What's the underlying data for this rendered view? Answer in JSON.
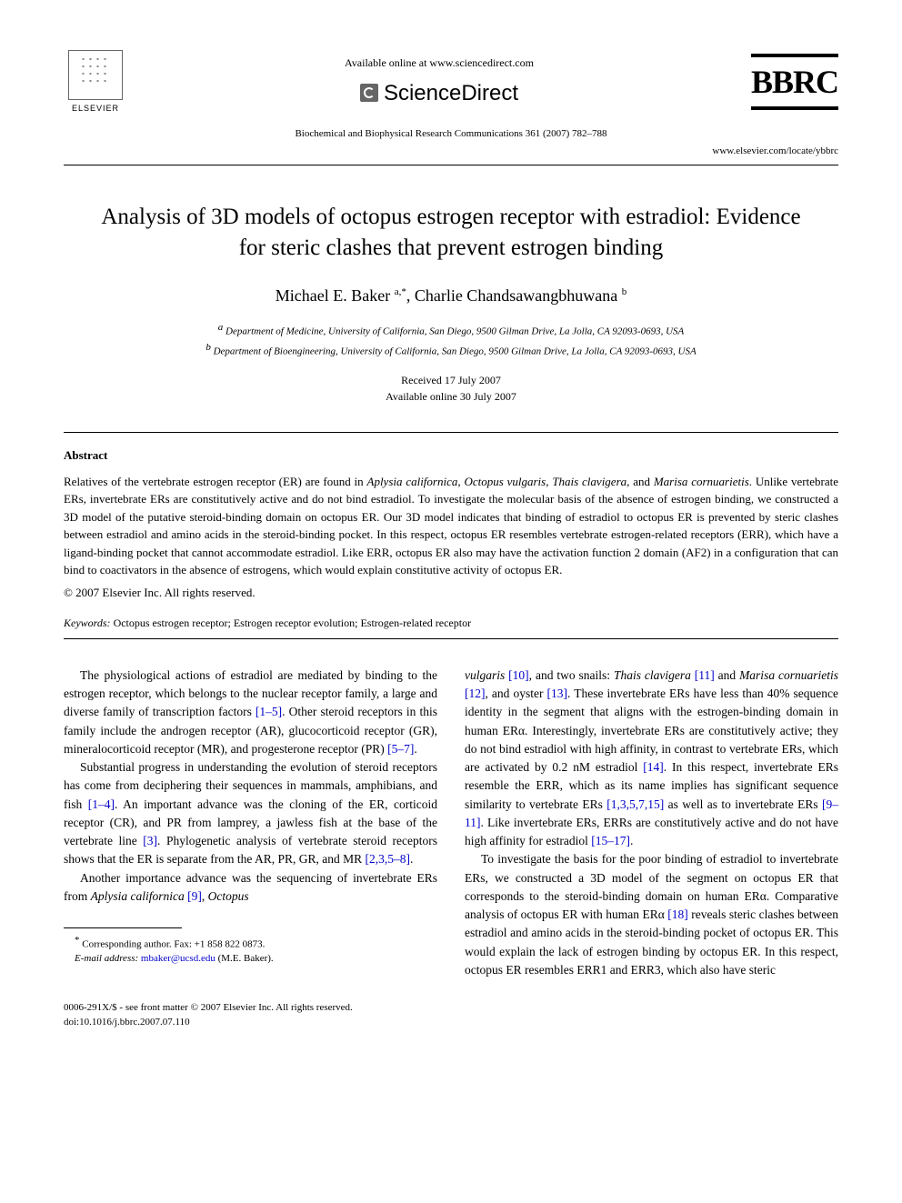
{
  "header": {
    "available_online": "Available online at www.sciencedirect.com",
    "sciencedirect": "ScienceDirect",
    "elsevier": "ELSEVIER",
    "bbrc": "BBRC",
    "journal_line": "Biochemical and Biophysical Research Communications 361 (2007) 782–788",
    "journal_url": "www.elsevier.com/locate/ybbrc"
  },
  "title": "Analysis of 3D models of octopus estrogen receptor with estradiol: Evidence for steric clashes that prevent estrogen binding",
  "authors": {
    "line": "Michael E. Baker ",
    "sup1": "a,*",
    "sep": ", Charlie Chandsawangbhuwana ",
    "sup2": "b"
  },
  "affiliations": {
    "a": "Department of Medicine, University of California, San Diego, 9500 Gilman Drive, La Jolla, CA 92093-0693, USA",
    "b": "Department of Bioengineering, University of California, San Diego, 9500 Gilman Drive, La Jolla, CA 92093-0693, USA"
  },
  "dates": {
    "received": "Received 17 July 2007",
    "online": "Available online 30 July 2007"
  },
  "abstract": {
    "heading": "Abstract",
    "text": "Relatives of the vertebrate estrogen receptor (ER) are found in Aplysia californica, Octopus vulgaris, Thais clavigera, and Marisa cornuarietis. Unlike vertebrate ERs, invertebrate ERs are constitutively active and do not bind estradiol. To investigate the molecular basis of the absence of estrogen binding, we constructed a 3D model of the putative steroid-binding domain on octopus ER. Our 3D model indicates that binding of estradiol to octopus ER is prevented by steric clashes between estradiol and amino acids in the steroid-binding pocket. In this respect, octopus ER resembles vertebrate estrogen-related receptors (ERR), which have a ligand-binding pocket that cannot accommodate estradiol. Like ERR, octopus ER also may have the activation function 2 domain (AF2) in a configuration that can bind to coactivators in the absence of estrogens, which would explain constitutive activity of octopus ER.",
    "copyright": "© 2007 Elsevier Inc. All rights reserved."
  },
  "keywords": {
    "label": "Keywords:",
    "text": " Octopus estrogen receptor; Estrogen receptor evolution; Estrogen-related receptor"
  },
  "body": {
    "left": {
      "p1a": "The physiological actions of estradiol are mediated by binding to the estrogen receptor, which belongs to the nuclear receptor family, a large and diverse family of transcription factors ",
      "p1_ref1": "[1–5]",
      "p1b": ". Other steroid receptors in this family include the androgen receptor (AR), glucocorticoid receptor (GR), mineralocorticoid receptor (MR), and progesterone receptor (PR) ",
      "p1_ref2": "[5–7]",
      "p1c": ".",
      "p2a": "Substantial progress in understanding the evolution of steroid receptors has come from deciphering their sequences in mammals, amphibians, and fish ",
      "p2_ref1": "[1–4]",
      "p2b": ". An important advance was the cloning of the ER, corticoid receptor (CR), and PR from lamprey, a jawless fish at the base of the vertebrate line ",
      "p2_ref2": "[3]",
      "p2c": ". Phylogenetic analysis of vertebrate steroid receptors shows that the ER is separate from the AR, PR, GR, and MR ",
      "p2_ref3": "[2,3,5–8]",
      "p2d": ".",
      "p3a": "Another importance advance was the sequencing of invertebrate ERs from ",
      "p3_species1": "Aplysia californica",
      "p3_ref1": " [9]",
      "p3b": ", ",
      "p3_species2": "Octopus"
    },
    "right": {
      "p1_species1": "vulgaris",
      "p1_ref1": " [10]",
      "p1a": ", and two snails: ",
      "p1_species2": "Thais clavigera",
      "p1_ref2": " [11]",
      "p1b": " and ",
      "p1_species3": "Marisa cornuarietis",
      "p1_ref3": " [12]",
      "p1c": ", and oyster ",
      "p1_ref4": "[13]",
      "p1d": ". These invertebrate ERs have less than 40% sequence identity in the segment that aligns with the estrogen-binding domain in human ERα. Interestingly, invertebrate ERs are constitutively active; they do not bind estradiol with high affinity, in contrast to vertebrate ERs, which are activated by 0.2 nM estradiol ",
      "p1_ref5": "[14]",
      "p1e": ". In this respect, invertebrate ERs resemble the ERR, which as its name implies has significant sequence similarity to vertebrate ERs ",
      "p1_ref6": "[1,3,5,7,15]",
      "p1f": " as well as to invertebrate ERs ",
      "p1_ref7": "[9–11]",
      "p1g": ". Like invertebrate ERs, ERRs are constitutively active and do not have high affinity for estradiol ",
      "p1_ref8": "[15–17]",
      "p1h": ".",
      "p2a": "To investigate the basis for the poor binding of estradiol to invertebrate ERs, we constructed a 3D model of the segment on octopus ER that corresponds to the steroid-binding domain on human ERα. Comparative analysis of octopus ER with human ERα ",
      "p2_ref1": "[18]",
      "p2b": " reveals steric clashes between estradiol and amino acids in the steroid-binding pocket of octopus ER. This would explain the lack of estrogen binding by octopus ER. In this respect, octopus ER resembles ERR1 and ERR3, which also have steric"
    }
  },
  "footnote": {
    "corr": "Corresponding author. Fax: +1 858 822 0873.",
    "email_label": "E-mail address:",
    "email": " mbaker@ucsd.edu",
    "email_suffix": " (M.E. Baker)."
  },
  "footer": {
    "left1": "0006-291X/$ - see front matter © 2007 Elsevier Inc. All rights reserved.",
    "left2": "doi:10.1016/j.bbrc.2007.07.110"
  }
}
